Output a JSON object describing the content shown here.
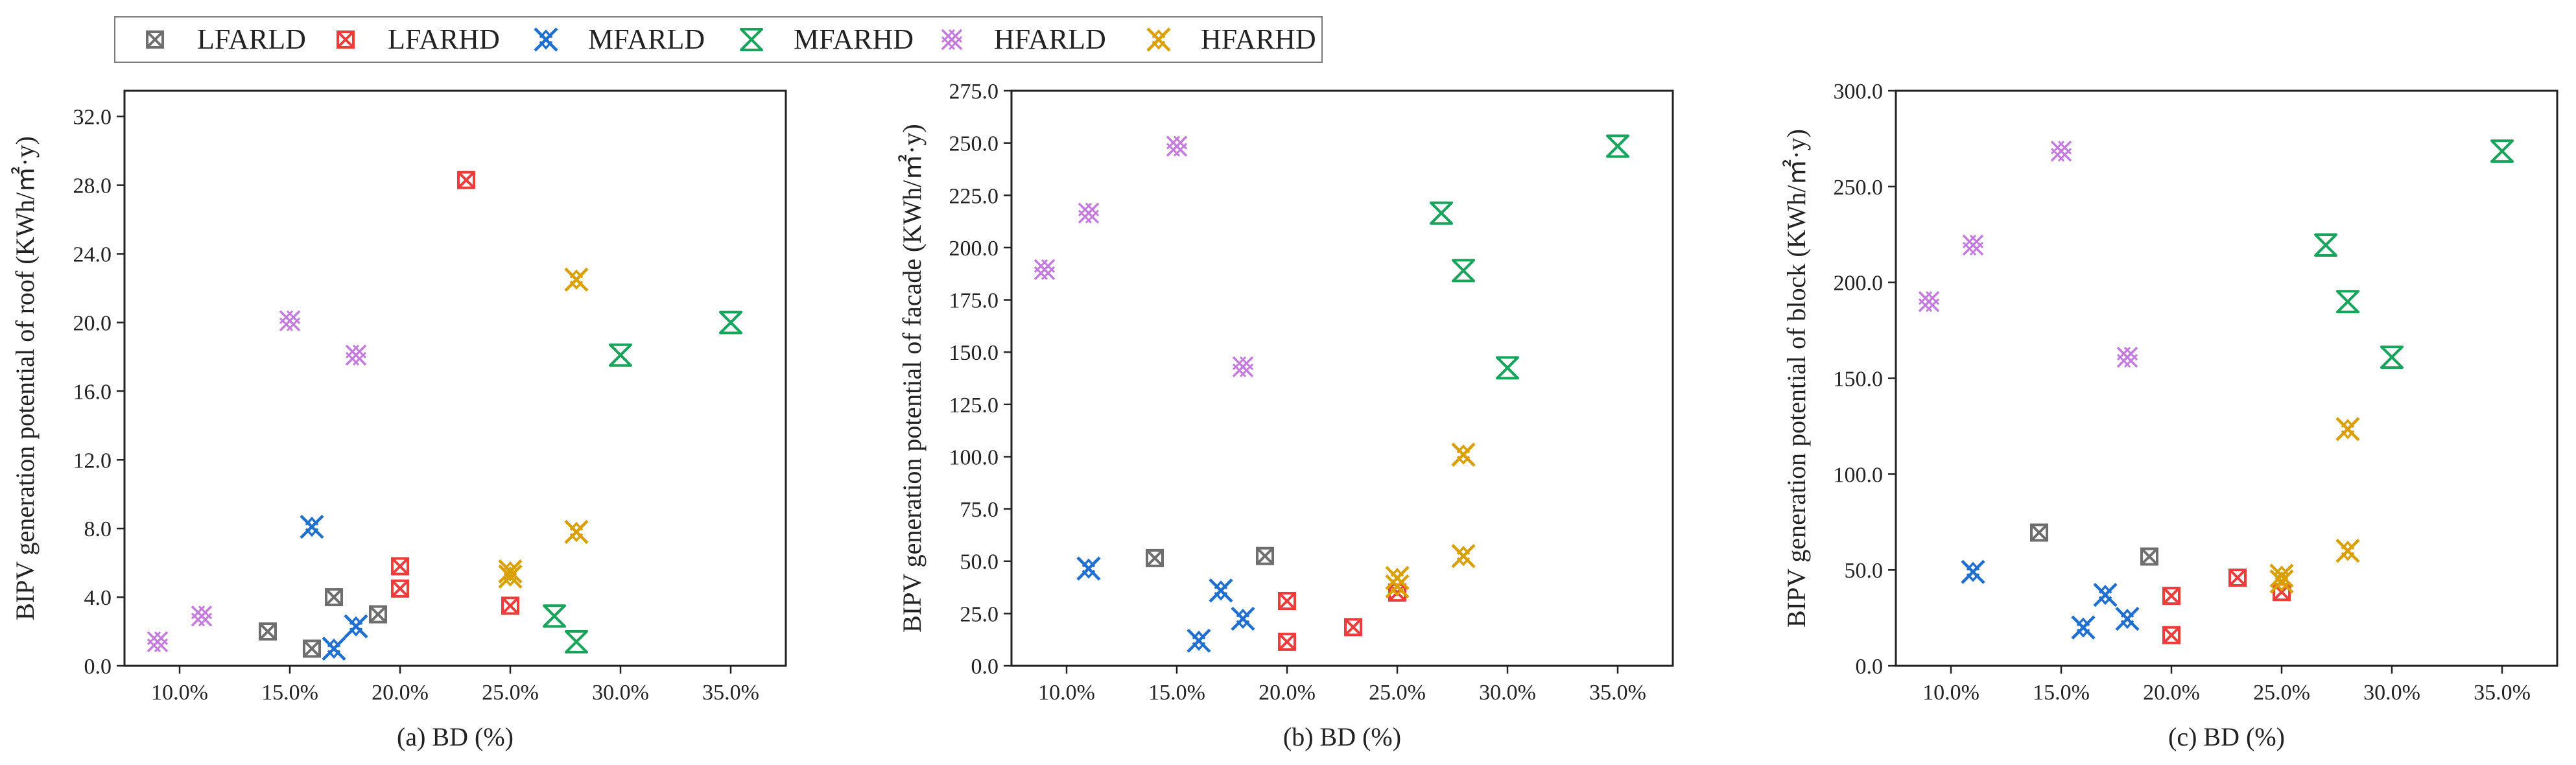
{
  "legend": [
    {
      "key": "LFARLD",
      "label": "LFARLD",
      "color": "#6e6e6e",
      "marker": "box-x"
    },
    {
      "key": "LFARHD",
      "label": "LFARHD",
      "color": "#ee3b3b",
      "marker": "box-x"
    },
    {
      "key": "MFARLD",
      "label": "MFARLD",
      "color": "#1f6fd0",
      "marker": "star-x"
    },
    {
      "key": "MFARHD",
      "label": "MFARHD",
      "color": "#19a35b",
      "marker": "hourglass-x"
    },
    {
      "key": "HFARLD",
      "label": "HFARLD",
      "color": "#c57ae0",
      "marker": "hatch-x"
    },
    {
      "key": "HFARHD",
      "label": "HFARHD",
      "color": "#d9a000",
      "marker": "star-x"
    }
  ],
  "chart_data": [
    {
      "type": "scatter",
      "title": "",
      "xlabel": "(a) BD (%)",
      "ylabel": "BIPV generation potential of roof (KWh/㎡·y)",
      "xlim": [
        7.5,
        37.5
      ],
      "ylim": [
        0,
        33.5
      ],
      "xticks": [
        10,
        15,
        20,
        25,
        30,
        35
      ],
      "xtick_labels": [
        "10.0%",
        "15.0%",
        "20.0%",
        "25.0%",
        "30.0%",
        "35.0%"
      ],
      "yticks": [
        0,
        4,
        8,
        12,
        16,
        20,
        24,
        28,
        32
      ],
      "ytick_labels": [
        "0.0",
        "4.0",
        "8.0",
        "12.0",
        "16.0",
        "20.0",
        "24.0",
        "28.0",
        "32.0"
      ],
      "series": [
        {
          "name": "LFARLD",
          "x": [
            14,
            16,
            17,
            19
          ],
          "y": [
            2.0,
            1.0,
            4.0,
            3.0
          ]
        },
        {
          "name": "LFARHD",
          "x": [
            20,
            20,
            23,
            25
          ],
          "y": [
            5.8,
            4.5,
            28.3,
            3.5
          ]
        },
        {
          "name": "MFARLD",
          "x": [
            16,
            17,
            18
          ],
          "y": [
            8.1,
            1.0,
            2.3
          ]
        },
        {
          "name": "MFARHD",
          "x": [
            27,
            28,
            30,
            35
          ],
          "y": [
            2.9,
            1.4,
            18.1,
            20.0
          ]
        },
        {
          "name": "HFARLD",
          "x": [
            9,
            11,
            15,
            18
          ],
          "y": [
            1.4,
            2.9,
            20.1,
            18.1
          ]
        },
        {
          "name": "HFARHD",
          "x": [
            25,
            25,
            28,
            28
          ],
          "y": [
            5.5,
            5.2,
            22.5,
            7.8
          ]
        }
      ]
    },
    {
      "type": "scatter",
      "title": "",
      "xlabel": "(b)  BD (%)",
      "ylabel": "BIPV generation potential of facade (KWh/㎡·y)",
      "xlim": [
        7.5,
        37.5
      ],
      "ylim": [
        0,
        275
      ],
      "xticks": [
        10,
        15,
        20,
        25,
        30,
        35
      ],
      "xtick_labels": [
        "10.0%",
        "15.0%",
        "20.0%",
        "25.0%",
        "30.0%",
        "35.0%"
      ],
      "yticks": [
        0,
        25,
        50,
        75,
        100,
        125,
        150,
        175,
        200,
        225,
        250,
        275
      ],
      "ytick_labels": [
        "0.0",
        "25.0",
        "50.0",
        "75.0",
        "100.0",
        "125.0",
        "150.0",
        "175.0",
        "200.0",
        "225.0",
        "250.0",
        "275.0"
      ],
      "series": [
        {
          "name": "LFARLD",
          "x": [
            14,
            19
          ],
          "y": [
            51.5,
            52.5
          ]
        },
        {
          "name": "LFARHD",
          "x": [
            20,
            20,
            23,
            25
          ],
          "y": [
            31,
            11.5,
            18.5,
            35
          ]
        },
        {
          "name": "MFARLD",
          "x": [
            11,
            16,
            17,
            18
          ],
          "y": [
            46.5,
            12,
            36,
            22.5
          ]
        },
        {
          "name": "MFARHD",
          "x": [
            27,
            28,
            30,
            35
          ],
          "y": [
            216.5,
            189,
            142.5,
            248.5
          ]
        },
        {
          "name": "HFARLD",
          "x": [
            9,
            11,
            15,
            18
          ],
          "y": [
            189.5,
            216.5,
            248.5,
            143
          ]
        },
        {
          "name": "HFARHD",
          "x": [
            25,
            25,
            28,
            28
          ],
          "y": [
            42,
            38,
            101,
            52.5
          ]
        }
      ]
    },
    {
      "type": "scatter",
      "title": "",
      "xlabel": "(c) BD (%)",
      "ylabel": "BIPV generation potential of block (KWh/㎡·y)",
      "xlim": [
        7.5,
        37.5
      ],
      "ylim": [
        0,
        300
      ],
      "xticks": [
        10,
        15,
        20,
        25,
        30,
        35
      ],
      "xtick_labels": [
        "10.0%",
        "15.0%",
        "20.0%",
        "25.0%",
        "30.0%",
        "35.0%"
      ],
      "yticks": [
        0,
        50,
        100,
        150,
        200,
        250,
        300
      ],
      "ytick_labels": [
        "0.0",
        "50.0",
        "100.0",
        "150.0",
        "200.0",
        "250.0",
        "300.0"
      ],
      "series": [
        {
          "name": "LFARLD",
          "x": [
            14,
            19
          ],
          "y": [
            69.5,
            57
          ]
        },
        {
          "name": "LFARHD",
          "x": [
            20,
            20,
            23,
            25
          ],
          "y": [
            36.5,
            16,
            46,
            38.5
          ]
        },
        {
          "name": "MFARLD",
          "x": [
            11,
            16,
            17,
            18
          ],
          "y": [
            49,
            20,
            37,
            24.5
          ]
        },
        {
          "name": "MFARHD",
          "x": [
            27,
            28,
            30,
            35
          ],
          "y": [
            219.5,
            190,
            161,
            268.5
          ]
        },
        {
          "name": "HFARLD",
          "x": [
            9,
            11,
            15,
            18
          ],
          "y": [
            190,
            219.5,
            268.5,
            161
          ]
        },
        {
          "name": "HFARHD",
          "x": [
            25,
            25,
            28,
            28
          ],
          "y": [
            47,
            44,
            123.5,
            60
          ]
        }
      ]
    }
  ]
}
